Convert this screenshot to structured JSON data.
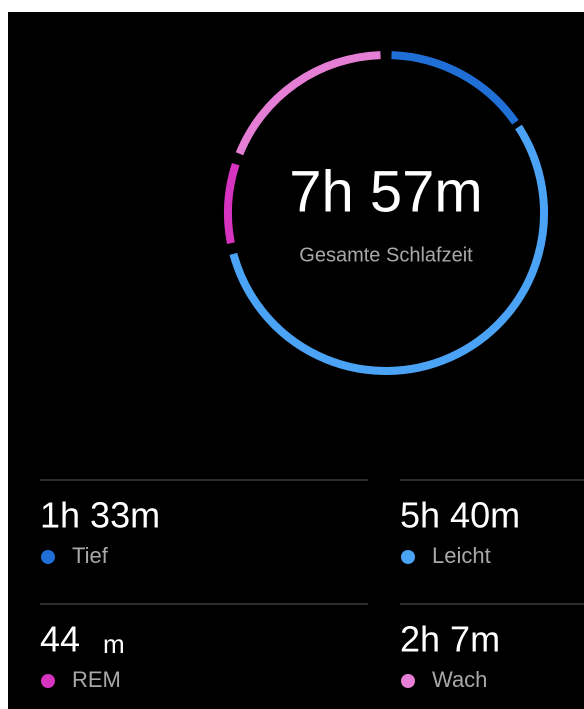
{
  "summary": {
    "total": "7h 57m",
    "label": "Gesamte Schlafzeit"
  },
  "stats": [
    {
      "value": "1h 33m",
      "label": "Tief"
    },
    {
      "value": "5h 40m",
      "label": "Leicht"
    },
    {
      "value": "44",
      "unit": "m",
      "label": "REM"
    },
    {
      "value": "2h 7m",
      "label": "Wach"
    }
  ]
}
